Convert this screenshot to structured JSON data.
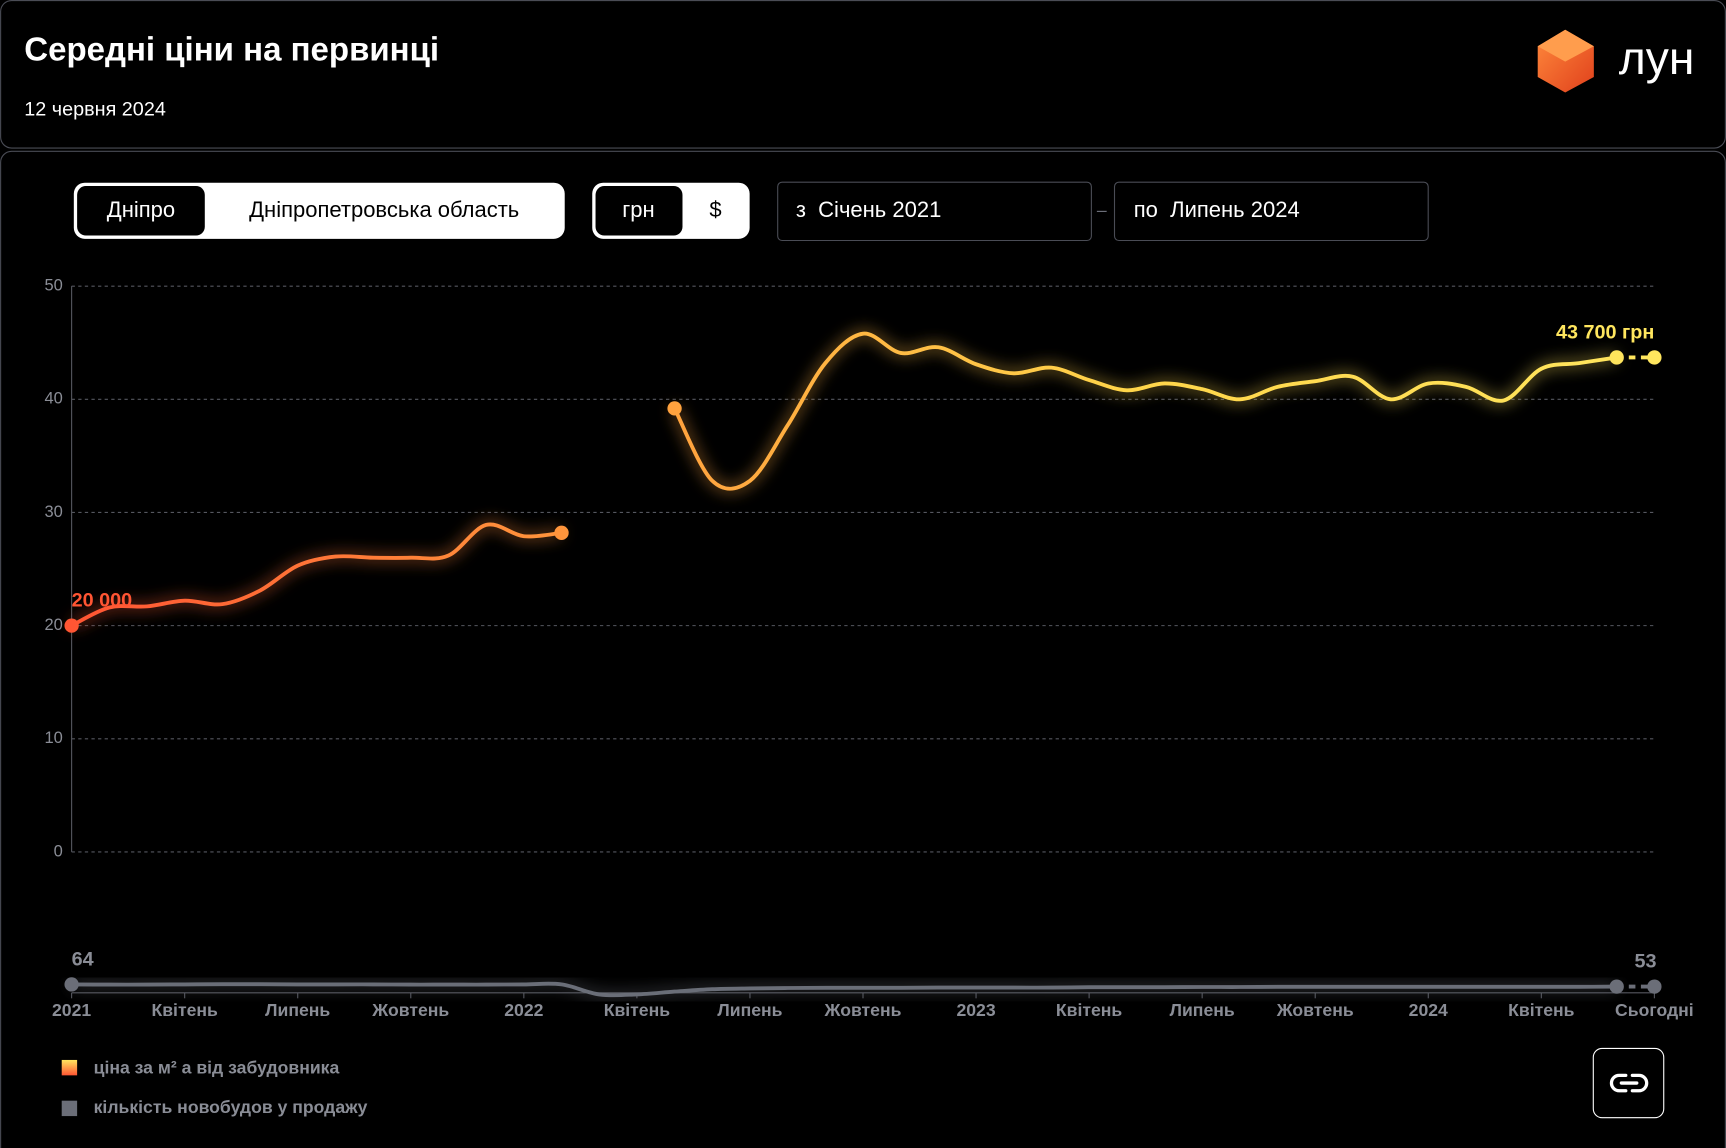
{
  "header": {
    "title": "Середні ціни на первинці",
    "date": "12 червня 2024",
    "logo": "лун"
  },
  "controls": {
    "region": [
      "Дніпро",
      "Дніпропетровська область"
    ],
    "currency": [
      "грн",
      "$"
    ],
    "from": "з  Січень 2021",
    "separator": "–",
    "to": "по  Липень 2024"
  },
  "chart_data": {
    "type": "line",
    "categories": [
      "2021",
      null,
      null,
      "Квітень",
      null,
      null,
      "Липень",
      null,
      null,
      "Жовтень",
      null,
      null,
      "2022",
      null,
      null,
      "Квітень",
      null,
      null,
      "Липень",
      null,
      null,
      "Жовтень",
      null,
      null,
      "2023",
      null,
      null,
      "Квітень",
      null,
      null,
      "Липень",
      null,
      null,
      "Жовтень",
      null,
      null,
      "2024",
      null,
      null,
      "Квітень",
      null,
      null,
      "Сьогодні"
    ],
    "ylim": [
      0,
      50
    ],
    "yticks": [
      0,
      10,
      20,
      30,
      40,
      50
    ],
    "y2lim": [
      0,
      110
    ],
    "grid": true,
    "series": [
      {
        "name": "ціна за м² а від забудовника",
        "colors": [
          "#ff5533",
          "#ff9a3c",
          "#ffd54a",
          "#ffe65e"
        ],
        "values": [
          20.0,
          21.6,
          21.7,
          22.2,
          21.9,
          23.1,
          25.3,
          26.1,
          26.0,
          26.0,
          26.2,
          28.9,
          27.9,
          28.2,
          null,
          null,
          39.2,
          32.8,
          32.8,
          37.7,
          43.2,
          45.8,
          44.1,
          44.6,
          43.1,
          42.3,
          42.8,
          41.7,
          40.8,
          41.4,
          40.9,
          40.0,
          41.1,
          41.6,
          42.0,
          40.0,
          41.4,
          41.1,
          39.9,
          42.7,
          43.2,
          43.7,
          43.7
        ],
        "value_labels": [
          "20 000",
          null,
          null,
          null,
          null,
          null,
          null,
          null,
          null,
          null,
          null,
          null,
          null,
          null,
          null,
          null,
          null,
          null,
          null,
          null,
          null,
          null,
          null,
          null,
          null,
          null,
          null,
          null,
          null,
          null,
          null,
          null,
          null,
          null,
          null,
          null,
          null,
          null,
          null,
          null,
          null,
          null,
          "43 700 грн"
        ]
      },
      {
        "name": "кількість новобудов у продажу",
        "color": "#6b6e78",
        "axis": "y2",
        "values": [
          64,
          63,
          63,
          64,
          65,
          65,
          64,
          64,
          64,
          63,
          63,
          63,
          64,
          64,
          14,
          14,
          28,
          40,
          44,
          46,
          47,
          47,
          47,
          48,
          48,
          48,
          48,
          50,
          50,
          50,
          51,
          51,
          52,
          52,
          52,
          52,
          52,
          52,
          52,
          52,
          52,
          53,
          53
        ]
      }
    ]
  }
}
